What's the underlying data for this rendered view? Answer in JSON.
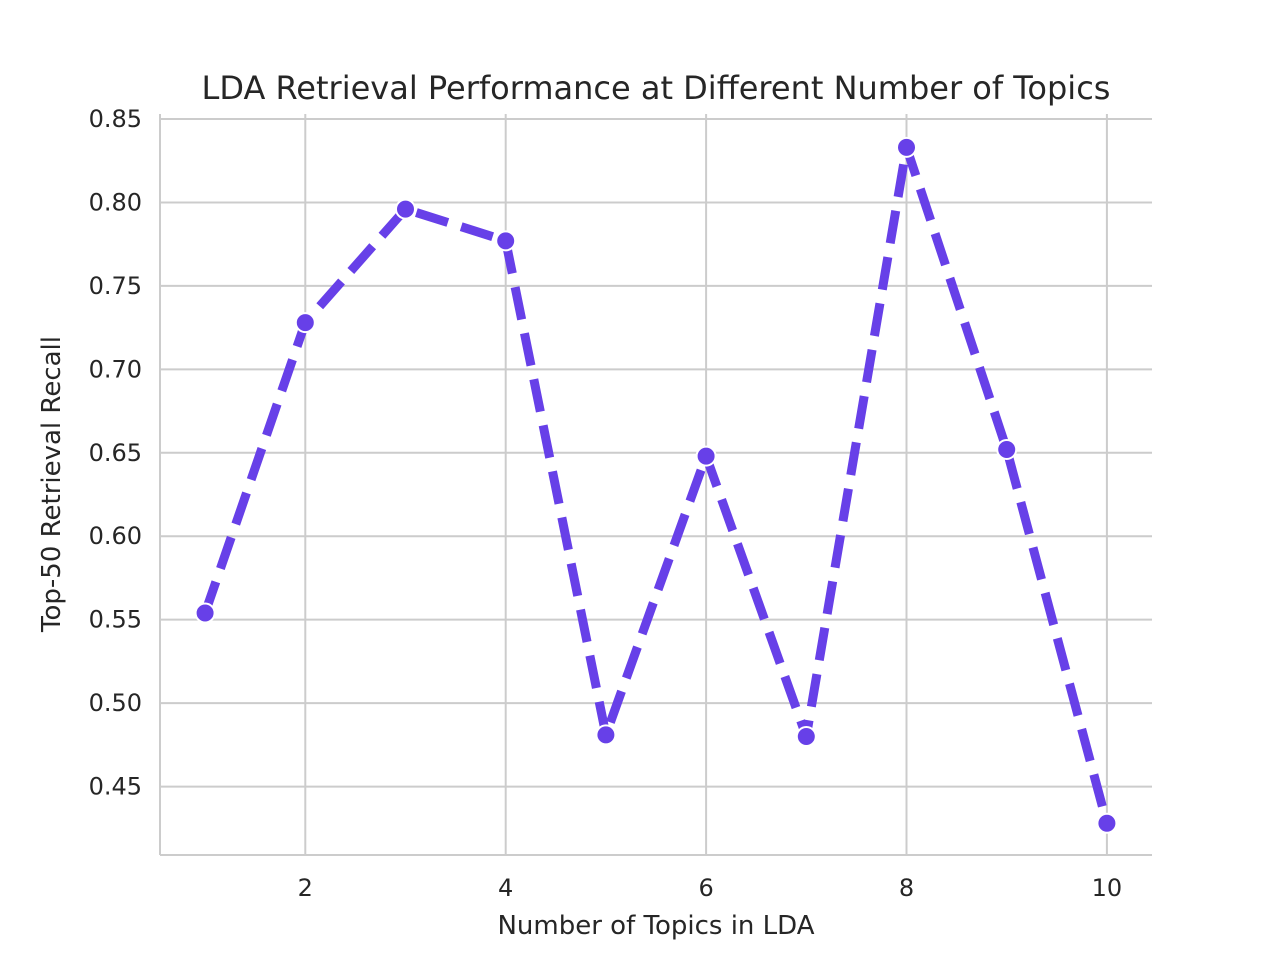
{
  "chart_data": {
    "type": "line",
    "title": "LDA Retrieval Performance at Different Number of Topics",
    "xlabel": "Number of Topics in LDA",
    "ylabel": "Top-50 Retrieval Recall",
    "x": [
      1,
      2,
      3,
      4,
      5,
      6,
      7,
      8,
      9,
      10
    ],
    "series": [
      {
        "values": [
          0.554,
          0.728,
          0.796,
          0.777,
          0.481,
          0.648,
          0.48,
          0.833,
          0.652,
          0.428
        ]
      }
    ],
    "xlim": [
      0.55,
      10.45
    ],
    "ylim": [
      0.409,
      0.853
    ],
    "xticks": [
      2,
      4,
      6,
      8,
      10
    ],
    "yticks": [
      0.45,
      0.5,
      0.55,
      0.6,
      0.65,
      0.7,
      0.75,
      0.8,
      0.85
    ],
    "ytick_labels": [
      "0.45",
      "0.50",
      "0.55",
      "0.60",
      "0.65",
      "0.70",
      "0.75",
      "0.80",
      "0.85"
    ],
    "xtick_labels": [
      "2",
      "4",
      "6",
      "8",
      "10"
    ],
    "grid": true,
    "line_style": "dashed",
    "marker": "circle",
    "color": "#6740e8"
  }
}
